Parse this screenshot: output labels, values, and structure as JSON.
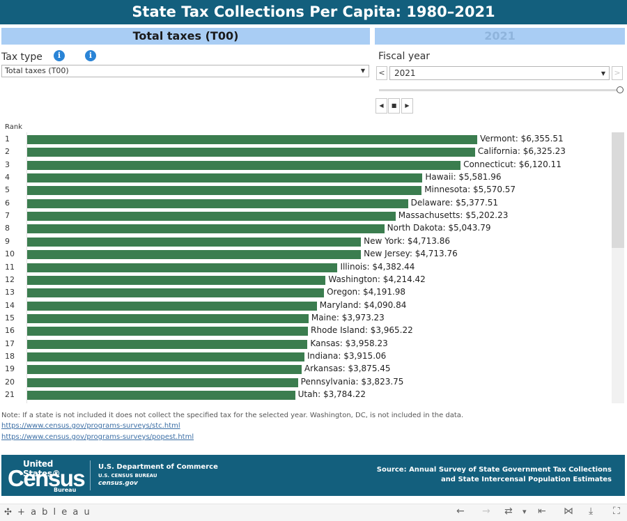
{
  "title": "State Tax Collections Per Capita: 1980–2021",
  "tax_name": "Total taxes (T00)",
  "year_header": "2021",
  "filters": {
    "tax_type_label": "Tax type",
    "tax_type_value": "Total taxes (T00)",
    "info_icon_glyph": "i",
    "fiscal_year_label": "Fiscal year",
    "fiscal_year_value": "2021",
    "prev_glyph": "<",
    "next_glyph": ">",
    "caret_glyph": "▼"
  },
  "playback": {
    "back_glyph": "◀",
    "stop_glyph": "■",
    "forward_glyph": "▶",
    "slider_position": 1.0
  },
  "chart_data": {
    "type": "bar",
    "orientation": "horizontal",
    "rank_header": "Rank",
    "x_max": 6500,
    "rows": [
      {
        "rank": "1",
        "state": "Vermont",
        "label": "Vermont: $6,355.51",
        "value": 6355.51
      },
      {
        "rank": "2",
        "state": "California",
        "label": "California: $6,325.23",
        "value": 6325.23
      },
      {
        "rank": "3",
        "state": "Connecticut",
        "label": "Connecticut: $6,120.11",
        "value": 6120.11
      },
      {
        "rank": "4",
        "state": "Hawaii",
        "label": "Hawaii: $5,581.96",
        "value": 5581.96
      },
      {
        "rank": "5",
        "state": "Minnesota",
        "label": "Minnesota: $5,570.57",
        "value": 5570.57
      },
      {
        "rank": "6",
        "state": "Delaware",
        "label": "Delaware: $5,377.51",
        "value": 5377.51
      },
      {
        "rank": "7",
        "state": "Massachusetts",
        "label": "Massachusetts: $5,202.23",
        "value": 5202.23
      },
      {
        "rank": "8",
        "state": "North Dakota",
        "label": "North Dakota: $5,043.79",
        "value": 5043.79
      },
      {
        "rank": "9",
        "state": "New York",
        "label": "New York: $4,713.86",
        "value": 4713.86
      },
      {
        "rank": "10",
        "state": "New Jersey",
        "label": "New Jersey: $4,713.76",
        "value": 4713.76
      },
      {
        "rank": "11",
        "state": "Illinois",
        "label": "Illinois: $4,382.44",
        "value": 4382.44
      },
      {
        "rank": "12",
        "state": "Washington",
        "label": "Washington: $4,214.42",
        "value": 4214.42
      },
      {
        "rank": "13",
        "state": "Oregon",
        "label": "Oregon: $4,191.98",
        "value": 4191.98
      },
      {
        "rank": "14",
        "state": "Maryland",
        "label": "Maryland: $4,090.84",
        "value": 4090.84
      },
      {
        "rank": "15",
        "state": "Maine",
        "label": "Maine: $3,973.23",
        "value": 3973.23
      },
      {
        "rank": "16",
        "state": "Rhode Island",
        "label": "Rhode Island: $3,965.22",
        "value": 3965.22
      },
      {
        "rank": "17",
        "state": "Kansas",
        "label": "Kansas: $3,958.23",
        "value": 3958.23
      },
      {
        "rank": "18",
        "state": "Indiana",
        "label": "Indiana: $3,915.06",
        "value": 3915.06
      },
      {
        "rank": "19",
        "state": "Arkansas",
        "label": "Arkansas: $3,875.45",
        "value": 3875.45
      },
      {
        "rank": "20",
        "state": "Pennsylvania",
        "label": "Pennsylvania: $3,823.75",
        "value": 3823.75
      },
      {
        "rank": "21",
        "state": "Utah",
        "label": "Utah: $3,784.22",
        "value": 3784.22
      }
    ],
    "bar_color": "#3b7d4f"
  },
  "notes": {
    "note": "Note: If a state is not included it does not collect the specified tax for the selected year. Washington, DC, is not included in the data.",
    "link1": "https://www.census.gov/programs-surveys/stc.html",
    "link2": "https://www.census.gov/programs-surveys/popest.html"
  },
  "footer": {
    "logo_us": "United States®",
    "logo_census": "Census",
    "logo_bureau": "Bureau",
    "dept": "U.S. Department of Commerce",
    "bureau": "U.S. CENSUS BUREAU",
    "site": "census.gov",
    "source_line1": "Source: Annual Survey of State Government Tax Collections",
    "source_line2": "and State Intercensal Population Estimates"
  },
  "toolbar": {
    "logo": "+ a b l e a u",
    "logo_mark": "✣",
    "icons": {
      "undo": "←",
      "redo": "→",
      "revert": "⇄",
      "dropdown": "▾",
      "first": "⇤",
      "share": "⋈",
      "download": "⤓",
      "fullscreen": "⛶"
    }
  },
  "colors": {
    "title_bg": "#135f7d",
    "panel_bg": "#a9cdf4",
    "bar": "#3b7d4f",
    "info": "#2a84d6"
  }
}
